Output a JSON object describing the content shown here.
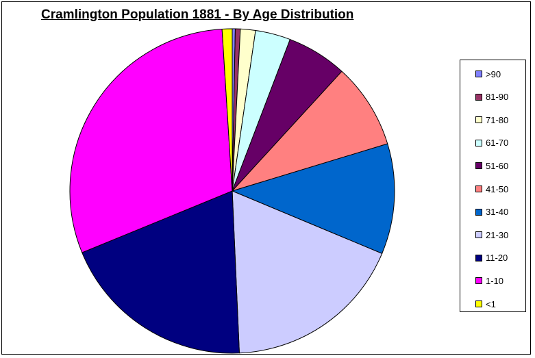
{
  "chart_data": {
    "type": "pie",
    "title": "Cramlington Population 1881 - By Age Distribution",
    "categories": [
      ">90",
      "81-90",
      "71-80",
      "61-70",
      "51-60",
      "41-50",
      "31-40",
      "21-30",
      "11-20",
      "1-10",
      "<1"
    ],
    "values": [
      0.3,
      0.5,
      1.5,
      3.5,
      6.0,
      8.5,
      11.0,
      18.0,
      19.5,
      30.2,
      1.0
    ],
    "colors": [
      "#8080ff",
      "#993366",
      "#ffffcc",
      "#ccffff",
      "#660066",
      "#ff8080",
      "#0066cc",
      "#ccccff",
      "#000080",
      "#ff00ff",
      "#ffff00"
    ],
    "start": "12 o'clock",
    "direction": "clockwise",
    "legend_position": "right"
  }
}
